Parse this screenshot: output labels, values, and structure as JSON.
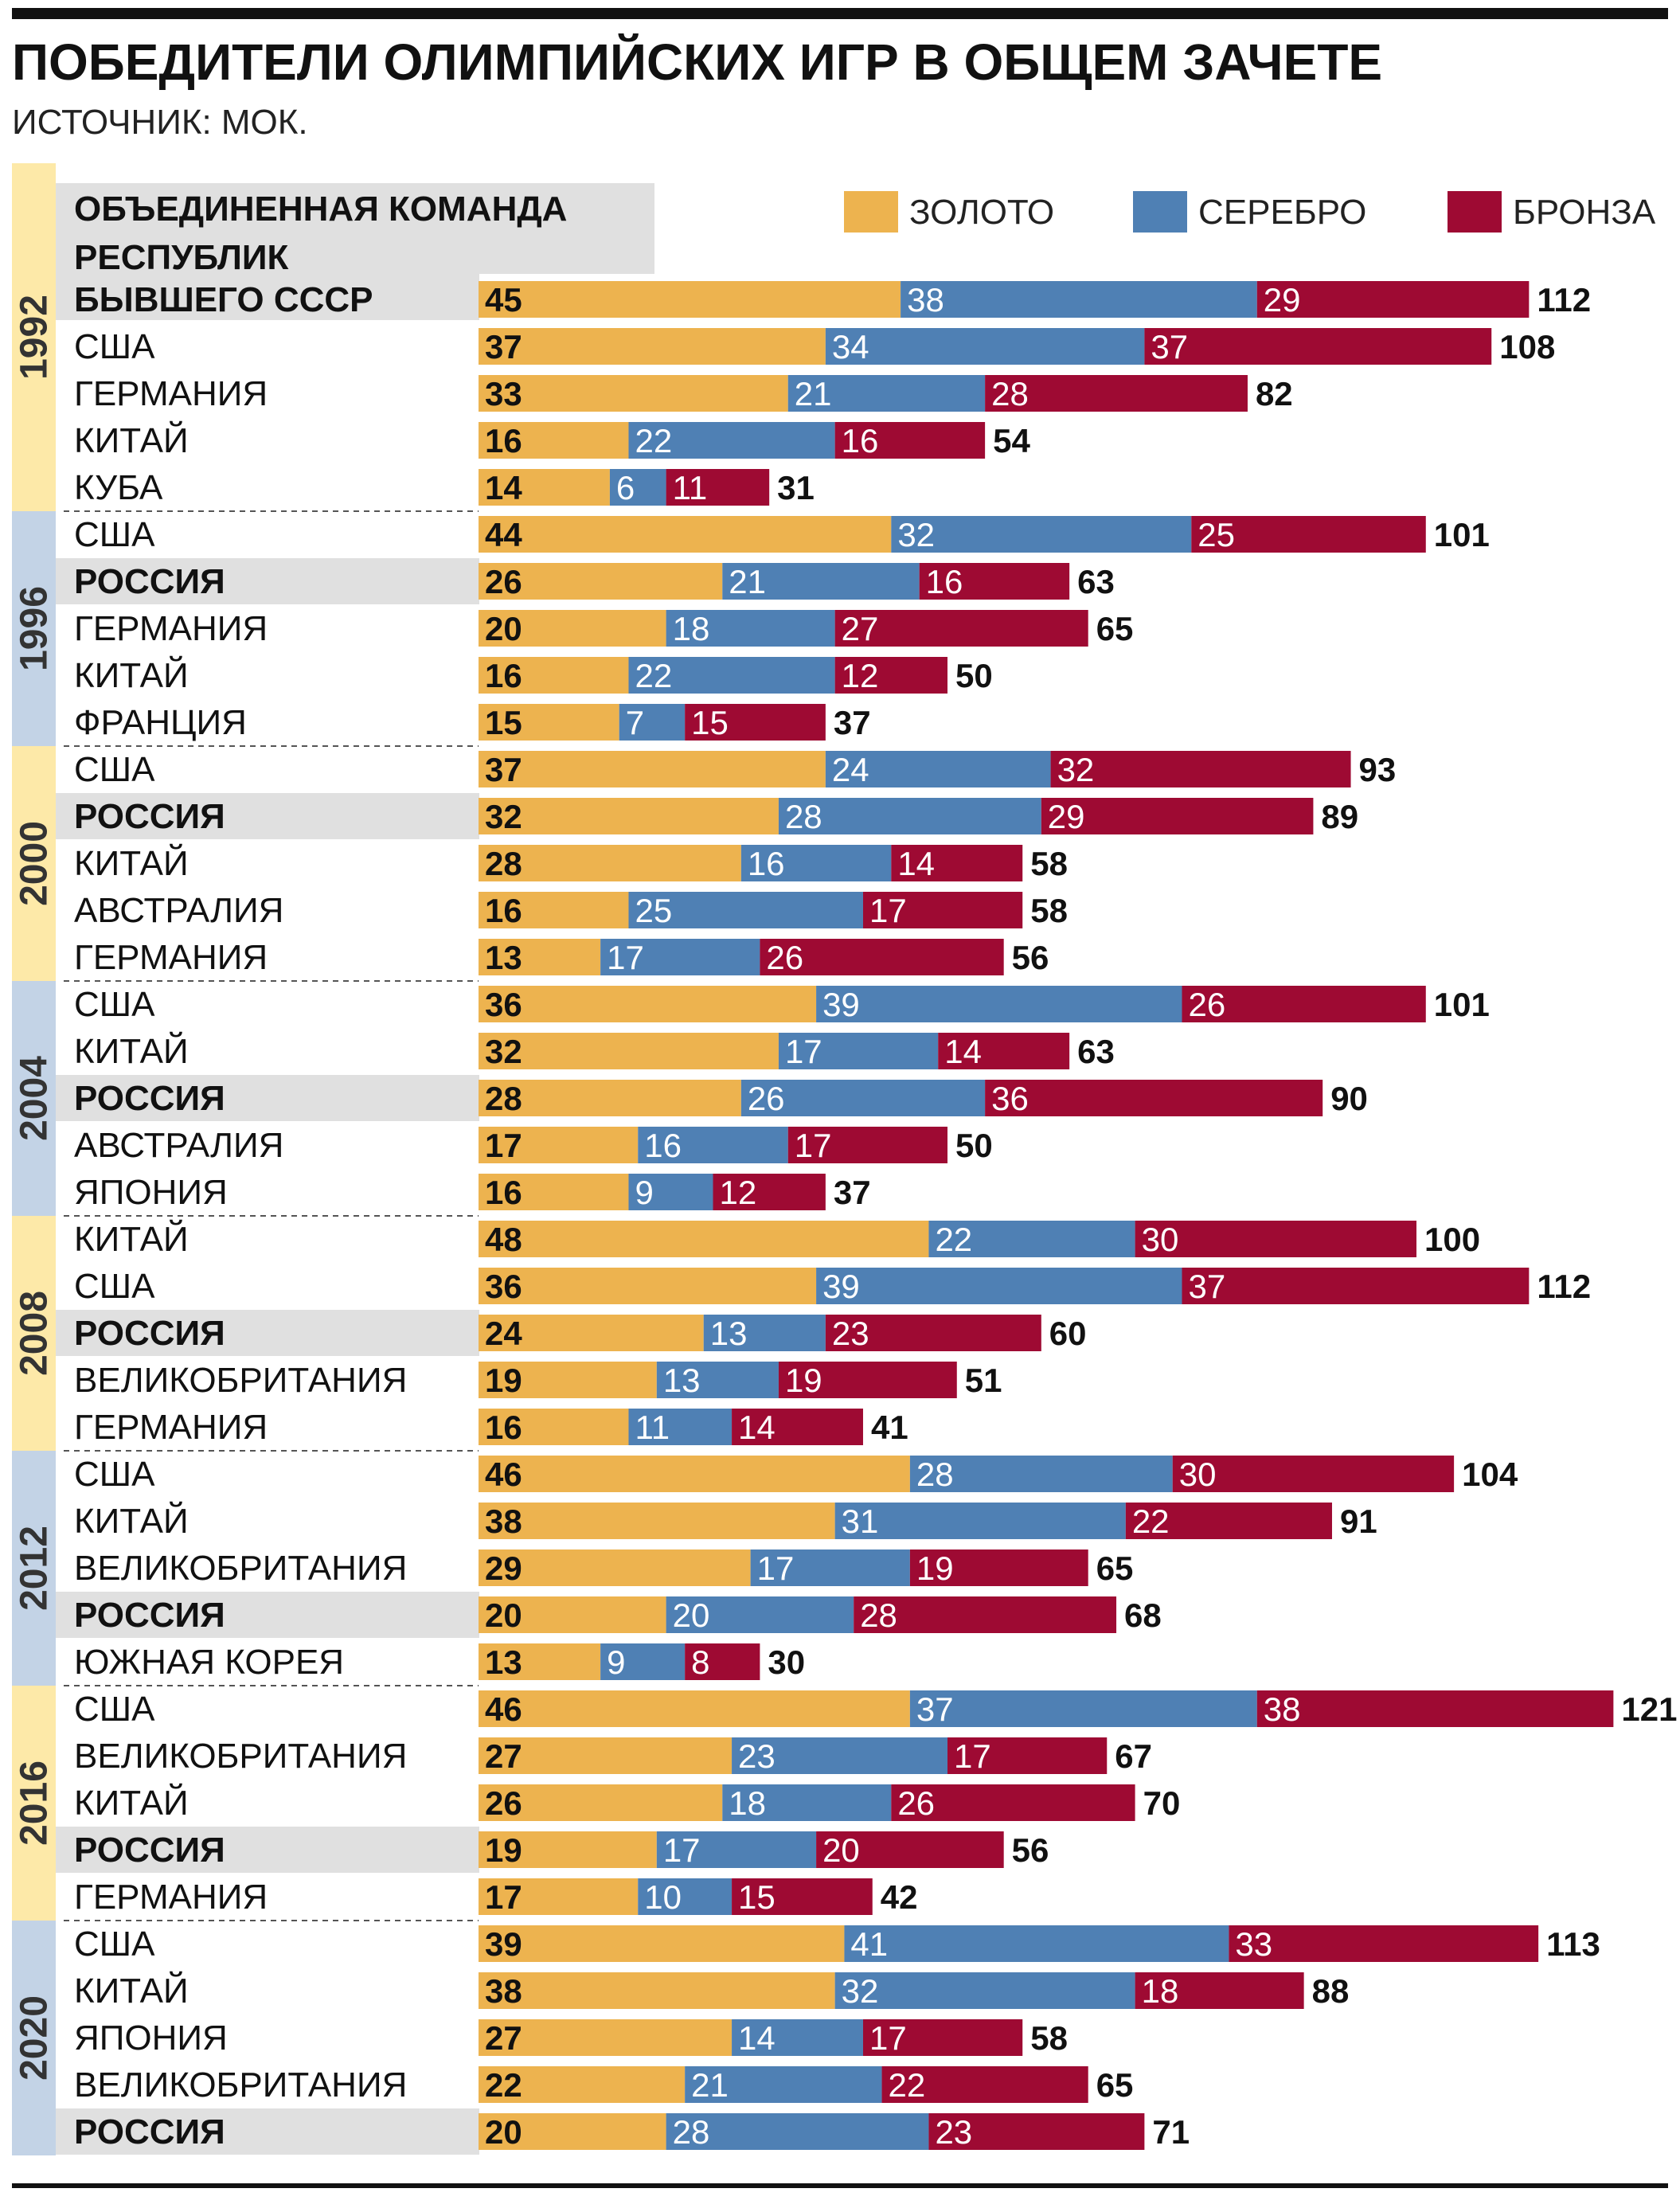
{
  "chart_data": {
    "type": "bar",
    "orientation": "horizontal",
    "stacked": true,
    "title": "ПОБЕДИТЕЛИ ОЛИМПИЙСКИХ ИГР В ОБЩЕМ ЗАЧЕТЕ",
    "subtitle": "ИСТОЧНИК: МОК.",
    "legend": {
      "placement": "top-right",
      "items": [
        {
          "name": "ЗОЛОТО",
          "color": "#edb34f"
        },
        {
          "name": "СЕРЕБРО",
          "color": "#4f80b4"
        },
        {
          "name": "БРОНЗА",
          "color": "#9e0a33"
        }
      ]
    },
    "groups": [
      {
        "year": "1992",
        "band_color": "#fde9a8",
        "rows": [
          {
            "country": "ОБЪЕДИНЕННАЯ КОМАНДА РЕСПУБЛИК БЫВШЕГО СССР",
            "lines": [
              "ОБЪЕДИНЕННАЯ КОМАНДА",
              "РЕСПУБЛИК",
              "БЫВШЕГО СССР"
            ],
            "highlight": true,
            "gold": 45,
            "silver": 38,
            "bronze": 29,
            "total": 112
          },
          {
            "country": "США",
            "gold": 37,
            "silver": 34,
            "bronze": 37,
            "total": 108
          },
          {
            "country": "ГЕРМАНИЯ",
            "gold": 33,
            "silver": 21,
            "bronze": 28,
            "total": 82
          },
          {
            "country": "КИТАЙ",
            "gold": 16,
            "silver": 22,
            "bronze": 16,
            "total": 54
          },
          {
            "country": "КУБА",
            "gold": 14,
            "silver": 6,
            "bronze": 11,
            "total": 31
          }
        ]
      },
      {
        "year": "1996",
        "band_color": "#c3d3e6",
        "rows": [
          {
            "country": "США",
            "gold": 44,
            "silver": 32,
            "bronze": 25,
            "total": 101
          },
          {
            "country": "РОССИЯ",
            "highlight": true,
            "gold": 26,
            "silver": 21,
            "bronze": 16,
            "total": 63
          },
          {
            "country": "ГЕРМАНИЯ",
            "gold": 20,
            "silver": 18,
            "bronze": 27,
            "total": 65
          },
          {
            "country": "КИТАЙ",
            "gold": 16,
            "silver": 22,
            "bronze": 12,
            "total": 50
          },
          {
            "country": "ФРАНЦИЯ",
            "gold": 15,
            "silver": 7,
            "bronze": 15,
            "total": 37
          }
        ]
      },
      {
        "year": "2000",
        "band_color": "#fde9a8",
        "rows": [
          {
            "country": "США",
            "gold": 37,
            "silver": 24,
            "bronze": 32,
            "total": 93
          },
          {
            "country": "РОССИЯ",
            "highlight": true,
            "gold": 32,
            "silver": 28,
            "bronze": 29,
            "total": 89
          },
          {
            "country": "КИТАЙ",
            "gold": 28,
            "silver": 16,
            "bronze": 14,
            "total": 58
          },
          {
            "country": "АВСТРАЛИЯ",
            "gold": 16,
            "silver": 25,
            "bronze": 17,
            "total": 58
          },
          {
            "country": "ГЕРМАНИЯ",
            "gold": 13,
            "silver": 17,
            "bronze": 26,
            "total": 56
          }
        ]
      },
      {
        "year": "2004",
        "band_color": "#c3d3e6",
        "rows": [
          {
            "country": "США",
            "gold": 36,
            "silver": 39,
            "bronze": 26,
            "total": 101
          },
          {
            "country": "КИТАЙ",
            "gold": 32,
            "silver": 17,
            "bronze": 14,
            "total": 63
          },
          {
            "country": "РОССИЯ",
            "highlight": true,
            "gold": 28,
            "silver": 26,
            "bronze": 36,
            "total": 90
          },
          {
            "country": "АВСТРАЛИЯ",
            "gold": 17,
            "silver": 16,
            "bronze": 17,
            "total": 50
          },
          {
            "country": "ЯПОНИЯ",
            "gold": 16,
            "silver": 9,
            "bronze": 12,
            "total": 37
          }
        ]
      },
      {
        "year": "2008",
        "band_color": "#fde9a8",
        "rows": [
          {
            "country": "КИТАЙ",
            "gold": 48,
            "silver": 22,
            "bronze": 30,
            "total": 100
          },
          {
            "country": "США",
            "gold": 36,
            "silver": 39,
            "bronze": 37,
            "total": 112
          },
          {
            "country": "РОССИЯ",
            "highlight": true,
            "gold": 24,
            "silver": 13,
            "bronze": 23,
            "total": 60
          },
          {
            "country": "ВЕЛИКОБРИТАНИЯ",
            "gold": 19,
            "silver": 13,
            "bronze": 19,
            "total": 51
          },
          {
            "country": "ГЕРМАНИЯ",
            "gold": 16,
            "silver": 11,
            "bronze": 14,
            "total": 41
          }
        ]
      },
      {
        "year": "2012",
        "band_color": "#c3d3e6",
        "rows": [
          {
            "country": "США",
            "gold": 46,
            "silver": 28,
            "bronze": 30,
            "total": 104
          },
          {
            "country": "КИТАЙ",
            "gold": 38,
            "silver": 31,
            "bronze": 22,
            "total": 91
          },
          {
            "country": "ВЕЛИКОБРИТАНИЯ",
            "gold": 29,
            "silver": 17,
            "bronze": 19,
            "total": 65
          },
          {
            "country": "РОССИЯ",
            "highlight": true,
            "gold": 20,
            "silver": 20,
            "bronze": 28,
            "total": 68
          },
          {
            "country": "ЮЖНАЯ КОРЕЯ",
            "gold": 13,
            "silver": 9,
            "bronze": 8,
            "total": 30
          }
        ]
      },
      {
        "year": "2016",
        "band_color": "#fde9a8",
        "rows": [
          {
            "country": "США",
            "gold": 46,
            "silver": 37,
            "bronze": 38,
            "total": 121
          },
          {
            "country": "ВЕЛИКОБРИТАНИЯ",
            "gold": 27,
            "silver": 23,
            "bronze": 17,
            "total": 67
          },
          {
            "country": "КИТАЙ",
            "gold": 26,
            "silver": 18,
            "bronze": 26,
            "total": 70
          },
          {
            "country": "РОССИЯ",
            "highlight": true,
            "gold": 19,
            "silver": 17,
            "bronze": 20,
            "total": 56
          },
          {
            "country": "ГЕРМАНИЯ",
            "gold": 17,
            "silver": 10,
            "bronze": 15,
            "total": 42
          }
        ]
      },
      {
        "year": "2020",
        "band_color": "#c3d3e6",
        "rows": [
          {
            "country": "США",
            "gold": 39,
            "silver": 41,
            "bronze": 33,
            "total": 113
          },
          {
            "country": "КИТАЙ",
            "gold": 38,
            "silver": 32,
            "bronze": 18,
            "total": 88
          },
          {
            "country": "ЯПОНИЯ",
            "gold": 27,
            "silver": 14,
            "bronze": 17,
            "total": 58
          },
          {
            "country": "ВЕЛИКОБРИТАНИЯ",
            "gold": 22,
            "silver": 21,
            "bronze": 22,
            "total": 65
          },
          {
            "country": "РОССИЯ",
            "highlight": true,
            "gold": 20,
            "silver": 28,
            "bronze": 23,
            "total": 71
          }
        ]
      }
    ],
    "highlight_color": "#e0e0e0"
  }
}
